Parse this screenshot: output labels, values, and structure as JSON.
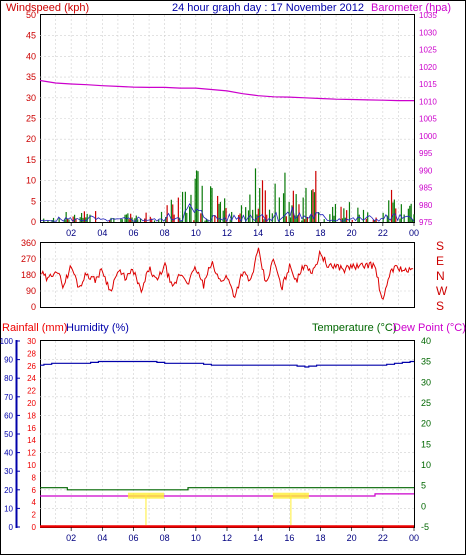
{
  "header": {
    "windspeed_label": "Windspeed (kph)",
    "title": "24 hour graph day : 17 November 2012",
    "barometer_label": "Barometer (hpa)"
  },
  "lower_header": {
    "rainfall_label": "Rainfall (mm)",
    "humidity_label": "Humidity (%)",
    "temperature_label": "Temperature (°C)",
    "dewpoint_label": "Dew Point (°C)"
  },
  "x_ticks": [
    "02",
    "04",
    "06",
    "08",
    "10",
    "12",
    "14",
    "16",
    "18",
    "20",
    "22",
    "00"
  ],
  "colors": {
    "wind": "#cc0000",
    "gust_bars": "#0a7a0a",
    "wind_avg": "#2222bb",
    "barometer": "#cc00cc",
    "direction": "#dd0000",
    "humidity": "#0000aa",
    "temperature": "#006600",
    "dewpoint": "#cc00cc",
    "rainfall": "#ee0000",
    "annotation": "#ffee33",
    "grid": "#d0d0d0"
  },
  "chart_data": [
    {
      "type": "bar",
      "panel": "wind-barometer",
      "x_range_hours": [
        0,
        24
      ],
      "ylim_left": [
        0,
        50
      ],
      "ylim_right": [
        975,
        1035
      ],
      "y_ticks_left": [
        0,
        5,
        10,
        15,
        20,
        25,
        30,
        35,
        40,
        45,
        50
      ],
      "y_ticks_right": [
        975,
        980,
        985,
        990,
        995,
        1000,
        1005,
        1010,
        1015,
        1020,
        1025,
        1030,
        1035
      ],
      "ylabel_left": "Windspeed (kph)",
      "ylabel_right": "Barometer (hpa)",
      "grid": true,
      "series": [
        {
          "name": "Barometer (hpa)",
          "axis": "right",
          "x": [
            0,
            1,
            2,
            3,
            4,
            5,
            6,
            7,
            8,
            9,
            10,
            11,
            12,
            13,
            14,
            15,
            16,
            17,
            18,
            19,
            20,
            21,
            22,
            23,
            24
          ],
          "values": [
            1016,
            1015.3,
            1015,
            1014.8,
            1014.5,
            1014.3,
            1014.1,
            1014,
            1014,
            1013.8,
            1013.8,
            1013.4,
            1013,
            1012.2,
            1011.6,
            1011.3,
            1011.2,
            1011,
            1010.8,
            1010.6,
            1010.5,
            1010.4,
            1010.3,
            1010.2,
            1010.2
          ]
        }
      ],
      "wind_peaks": {
        "x": [
          0.5,
          1.5,
          2.3,
          3.2,
          4.1,
          5.0,
          6.5,
          7.6,
          8.4,
          9.2,
          9.6,
          10.3,
          10.8,
          11.5,
          12.3,
          13.2,
          13.9,
          14.6,
          15.5,
          16.2,
          16.9,
          17.6,
          18.5,
          19.3,
          20.2,
          21.0,
          21.8,
          22.6,
          23.4,
          24.0
        ],
        "values": [
          2,
          6,
          4,
          7,
          3,
          4,
          6,
          3,
          10,
          12,
          22,
          14,
          10,
          6,
          8,
          9,
          15,
          8,
          12,
          15,
          9,
          13,
          5,
          6,
          5,
          7,
          5,
          10,
          6,
          7
        ]
      }
    },
    {
      "type": "line",
      "panel": "wind-direction",
      "x_range_hours": [
        0,
        24
      ],
      "ylim": [
        0,
        360
      ],
      "y_ticks": [
        0,
        90,
        180,
        270,
        360
      ],
      "compass_labels": [
        "S",
        "E",
        "N",
        "W",
        "S"
      ],
      "grid": true,
      "series": [
        {
          "name": "",
          "x": [
            0,
            0.5,
            1,
            1.5,
            2,
            2.5,
            3,
            3.5,
            4,
            4.5,
            5,
            5.5,
            6,
            6.5,
            7,
            7.5,
            8,
            8.5,
            9,
            9.5,
            10,
            10.5,
            11,
            11.5,
            12,
            12.5,
            13,
            13.5,
            14,
            14.5,
            15,
            15.5,
            16,
            16.5,
            17,
            17.5,
            18,
            18.5,
            19,
            19.5,
            20,
            20.5,
            21,
            21.5,
            22,
            22.5,
            23,
            23.5,
            24
          ],
          "values": [
            200,
            150,
            215,
            120,
            230,
            110,
            190,
            150,
            210,
            90,
            200,
            165,
            205,
            80,
            220,
            140,
            240,
            100,
            190,
            140,
            220,
            120,
            250,
            150,
            170,
            60,
            200,
            140,
            320,
            130,
            270,
            100,
            230,
            150,
            250,
            190,
            310,
            220,
            235,
            210,
            230,
            225,
            240,
            230,
            20,
            210,
            225,
            200,
            210
          ]
        }
      ]
    },
    {
      "type": "line",
      "panel": "rain-humidity-temperature",
      "x_range_hours": [
        0,
        24
      ],
      "ylim_humidity": [
        0,
        100
      ],
      "ylim_rainfall": [
        0,
        30
      ],
      "ylim_temperature": [
        -5,
        40
      ],
      "y_ticks_humidity": [
        0,
        10,
        20,
        30,
        40,
        50,
        60,
        70,
        80,
        90,
        100
      ],
      "y_ticks_rainfall": [
        0,
        2,
        4,
        6,
        8,
        10,
        12,
        14,
        16,
        18,
        20,
        22,
        24,
        26,
        28,
        30
      ],
      "y_ticks_temperature": [
        -5,
        0,
        5,
        10,
        15,
        20,
        25,
        30,
        35,
        40
      ],
      "grid": true,
      "series": [
        {
          "name": "Humidity (%)",
          "axis": "humidity",
          "x": [
            0,
            1,
            2,
            3,
            4,
            5,
            6,
            7,
            8,
            9,
            10,
            11,
            12,
            13,
            14,
            15,
            16,
            17,
            18,
            19,
            20,
            21,
            22,
            23,
            24
          ],
          "values": [
            87,
            88,
            88,
            88,
            89,
            89,
            89,
            89,
            88,
            88,
            88,
            87,
            87,
            87,
            87,
            87,
            87,
            86,
            87,
            87,
            87,
            87,
            87,
            88,
            89
          ]
        },
        {
          "name": "Temperature (°C)",
          "axis": "temperature",
          "x": [
            0,
            1,
            2,
            3,
            4,
            5,
            6,
            7,
            8,
            9,
            10,
            11,
            12,
            13,
            14,
            15,
            16,
            17,
            18,
            19,
            20,
            21,
            22,
            23,
            24
          ],
          "values": [
            4.5,
            4.3,
            4.2,
            4.1,
            4.0,
            3.9,
            3.9,
            4.0,
            4.1,
            4.2,
            4.3,
            4.4,
            4.5,
            4.6,
            4.6,
            4.6,
            4.6,
            4.6,
            4.6,
            4.6,
            4.6,
            4.6,
            4.6,
            4.6,
            4.6
          ]
        },
        {
          "name": "Dew Point (°C)",
          "axis": "temperature",
          "x": [
            0,
            1,
            2,
            3,
            4,
            5,
            6,
            7,
            8,
            9,
            10,
            11,
            12,
            13,
            14,
            15,
            16,
            17,
            18,
            19,
            20,
            21,
            22,
            23,
            24
          ],
          "values": [
            2.6,
            2.6,
            2.5,
            2.5,
            2.6,
            2.6,
            2.5,
            2.4,
            2.4,
            2.4,
            2.5,
            2.6,
            2.6,
            2.6,
            2.7,
            2.6,
            2.5,
            2.5,
            2.6,
            2.7,
            2.7,
            2.7,
            2.8,
            2.9,
            2.9
          ]
        },
        {
          "name": "Rainfall (mm)",
          "axis": "rainfall",
          "x": [
            0,
            24
          ],
          "values": [
            0,
            0
          ]
        }
      ]
    }
  ]
}
